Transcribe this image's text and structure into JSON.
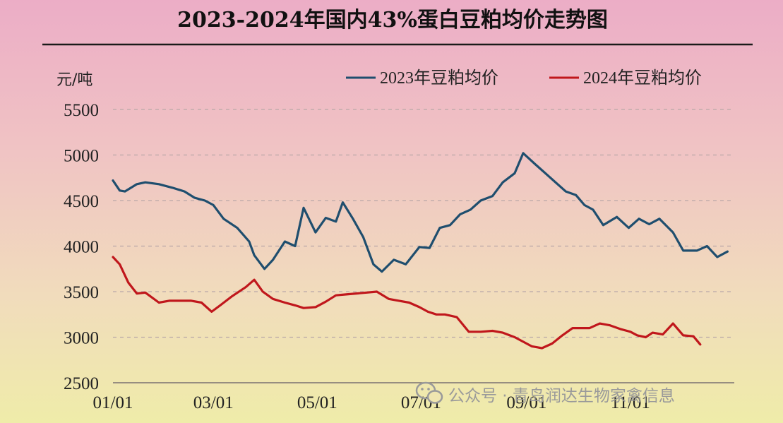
{
  "chart_data": {
    "type": "line",
    "title": "2023-2024年国内43%蛋白豆粕均价走势图",
    "ylabel": "元/吨",
    "xlabel": "",
    "ylim": [
      2500,
      5500
    ],
    "yticks": [
      2500,
      3000,
      3500,
      4000,
      4500,
      5000,
      5500
    ],
    "xticks": [
      "01/01",
      "03/01",
      "05/01",
      "07/01",
      "09/01",
      "11/01"
    ],
    "grid": true,
    "legend_position": "top-right",
    "colors": {
      "2023": "#1f4e6e",
      "2024": "#c0171c",
      "grid": "#b9a8a8",
      "axis": "#7a7070"
    },
    "series": [
      {
        "name": "2023年豆粕均价",
        "x": [
          "01/01",
          "01/05",
          "01/08",
          "01/15",
          "01/20",
          "01/28",
          "02/05",
          "02/12",
          "02/18",
          "02/24",
          "03/01",
          "03/07",
          "03/15",
          "03/22",
          "03/25",
          "03/31",
          "04/05",
          "04/12",
          "04/18",
          "04/23",
          "04/30",
          "05/06",
          "05/12",
          "05/16",
          "05/22",
          "05/28",
          "06/03",
          "06/08",
          "06/15",
          "06/22",
          "06/30",
          "07/06",
          "07/12",
          "07/18",
          "07/24",
          "07/30",
          "08/05",
          "08/12",
          "08/18",
          "08/25",
          "08/30",
          "09/06",
          "09/12",
          "09/18",
          "09/24",
          "09/30",
          "10/05",
          "10/10",
          "10/16",
          "10/24",
          "10/31",
          "11/06",
          "11/12",
          "11/18",
          "11/26",
          "12/02",
          "12/10",
          "12/16",
          "12/22",
          "12/28"
        ],
        "values": [
          4720,
          4610,
          4600,
          4680,
          4700,
          4680,
          4640,
          4600,
          4530,
          4500,
          4450,
          4300,
          4200,
          4050,
          3900,
          3750,
          3850,
          4050,
          4000,
          4420,
          4150,
          4310,
          4270,
          4480,
          4300,
          4100,
          3800,
          3720,
          3850,
          3800,
          3990,
          3980,
          4200,
          4230,
          4350,
          4400,
          4500,
          4550,
          4700,
          4800,
          5020,
          4900,
          4800,
          4700,
          4600,
          4560,
          4450,
          4400,
          4230,
          4320,
          4200,
          4300,
          4240,
          4300,
          4150,
          3950,
          3950,
          4000,
          3880,
          3940
        ]
      },
      {
        "name": "2024年豆粕均价",
        "x": [
          "01/01",
          "01/05",
          "01/10",
          "01/15",
          "01/20",
          "01/28",
          "02/03",
          "02/10",
          "02/16",
          "02/22",
          "02/28",
          "03/05",
          "03/12",
          "03/20",
          "03/25",
          "03/30",
          "04/05",
          "04/12",
          "04/18",
          "04/23",
          "04/30",
          "05/06",
          "05/12",
          "05/18",
          "05/24",
          "05/30",
          "06/05",
          "06/12",
          "06/18",
          "06/24",
          "06/30",
          "07/05",
          "07/10",
          "07/15",
          "07/22",
          "07/29",
          "08/05",
          "08/12",
          "08/18",
          "08/25",
          "08/30",
          "09/04",
          "09/10",
          "09/16",
          "09/22",
          "09/28",
          "10/03",
          "10/08",
          "10/14",
          "10/20",
          "10/26",
          "11/01",
          "11/05",
          "11/10",
          "11/14",
          "11/20",
          "11/26",
          "12/02",
          "12/08",
          "12/12"
        ],
        "values": [
          3880,
          3800,
          3600,
          3480,
          3490,
          3380,
          3400,
          3400,
          3400,
          3380,
          3280,
          3350,
          3450,
          3550,
          3630,
          3500,
          3420,
          3380,
          3350,
          3320,
          3330,
          3390,
          3460,
          3470,
          3480,
          3490,
          3500,
          3420,
          3400,
          3380,
          3330,
          3280,
          3250,
          3250,
          3220,
          3060,
          3060,
          3070,
          3050,
          3000,
          2950,
          2900,
          2880,
          2930,
          3020,
          3100,
          3100,
          3100,
          3150,
          3130,
          3090,
          3060,
          3020,
          3000,
          3050,
          3030,
          3150,
          3020,
          3010,
          2920
        ]
      }
    ]
  },
  "watermark": "公众号 · 青岛润达生物家禽信息"
}
